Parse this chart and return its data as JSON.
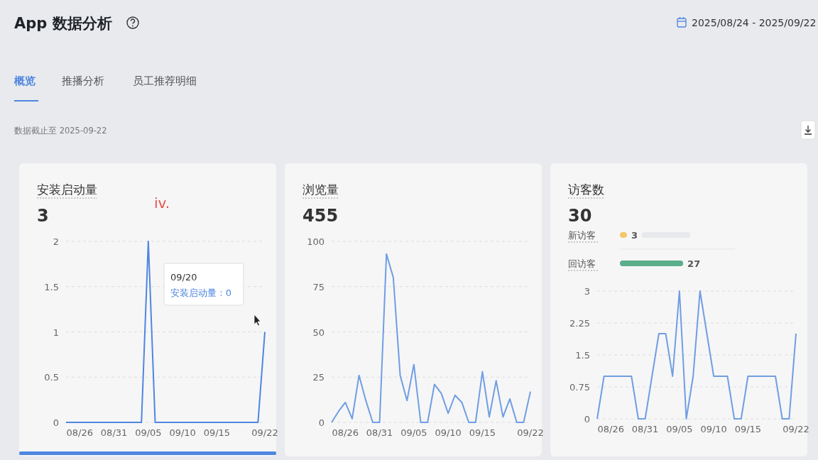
{
  "chart_data": [
    {
      "type": "other",
      "title": "App 数据分析",
      "annotations": [
        "2025/08/24 - 2025/09/22",
        "概览",
        "推播分析",
        "员工推荐明细",
        "数据截止至 2025-09-22"
      ]
    },
    {
      "type": "line",
      "title": "安装启动量",
      "subtitle": "3",
      "categories": [
        null,
        null,
        "08/26",
        null,
        null,
        null,
        null,
        "08/31",
        null,
        null,
        null,
        null,
        "09/05",
        null,
        null,
        null,
        null,
        "09/10",
        null,
        null,
        null,
        null,
        "09/15",
        null,
        null,
        null,
        null,
        null,
        null,
        "09/22"
      ],
      "series": [
        {
          "color": "#4f86e0",
          "values": [
            0,
            0,
            0,
            0,
            0,
            0,
            0,
            0,
            0,
            0,
            0,
            0,
            2,
            0,
            0,
            0,
            0,
            0,
            0,
            0,
            0,
            0,
            0,
            0,
            0,
            0,
            0,
            0,
            0,
            1
          ]
        }
      ],
      "ylim": [
        0,
        2
      ],
      "yticks": [
        0,
        0.5,
        1,
        1.5,
        2
      ],
      "grid": "y",
      "annotations": [
        "iv.",
        "09/20",
        "安装启动量 : 0"
      ]
    },
    {
      "type": "line",
      "title": "浏览量",
      "subtitle": "455",
      "categories": [
        null,
        null,
        "08/26",
        null,
        null,
        null,
        null,
        "08/31",
        null,
        null,
        null,
        null,
        "09/05",
        null,
        null,
        null,
        null,
        "09/10",
        null,
        null,
        null,
        null,
        "09/15",
        null,
        null,
        null,
        null,
        null,
        null,
        "09/22"
      ],
      "series": [
        {
          "color": "#6f9ee3",
          "values": [
            0,
            6,
            11,
            2,
            26,
            12,
            0,
            0,
            93,
            80,
            26,
            12,
            32,
            0,
            0,
            21,
            16,
            5,
            15,
            11,
            0,
            0,
            28,
            3,
            23,
            3,
            13,
            0,
            0,
            17
          ]
        }
      ],
      "ylim": [
        0,
        100
      ],
      "yticks": [
        0,
        25,
        50,
        75,
        100
      ],
      "grid": "y"
    },
    {
      "type": "other",
      "title": "访客数",
      "subtitle": "30"
    },
    {
      "type": "bar",
      "orientation": "horizontal",
      "categories": [
        "新访客",
        "回访客"
      ],
      "values": [
        3,
        27
      ],
      "colors": [
        "#f5c66b",
        "#5aae8a"
      ],
      "value_labels": [
        "3",
        "27"
      ],
      "tick_labels": "y"
    },
    {
      "type": "line",
      "categories": [
        null,
        null,
        "08/26",
        null,
        null,
        null,
        null,
        "08/31",
        null,
        null,
        null,
        null,
        "09/05",
        null,
        null,
        null,
        null,
        "09/10",
        null,
        null,
        null,
        null,
        "09/15",
        null,
        null,
        null,
        null,
        null,
        null,
        "09/22"
      ],
      "series": [
        {
          "color": "#6f9ee3",
          "values": [
            0,
            1,
            1,
            1,
            1,
            1,
            0,
            0,
            1,
            2,
            2,
            1,
            3,
            0,
            1,
            3,
            2,
            1,
            1,
            1,
            0,
            0,
            1,
            1,
            1,
            1,
            1,
            0,
            0,
            2
          ]
        }
      ],
      "ylim": [
        0,
        3
      ],
      "yticks": [
        0,
        0.75,
        1.5,
        2.25,
        3
      ],
      "grid": "y"
    }
  ]
}
